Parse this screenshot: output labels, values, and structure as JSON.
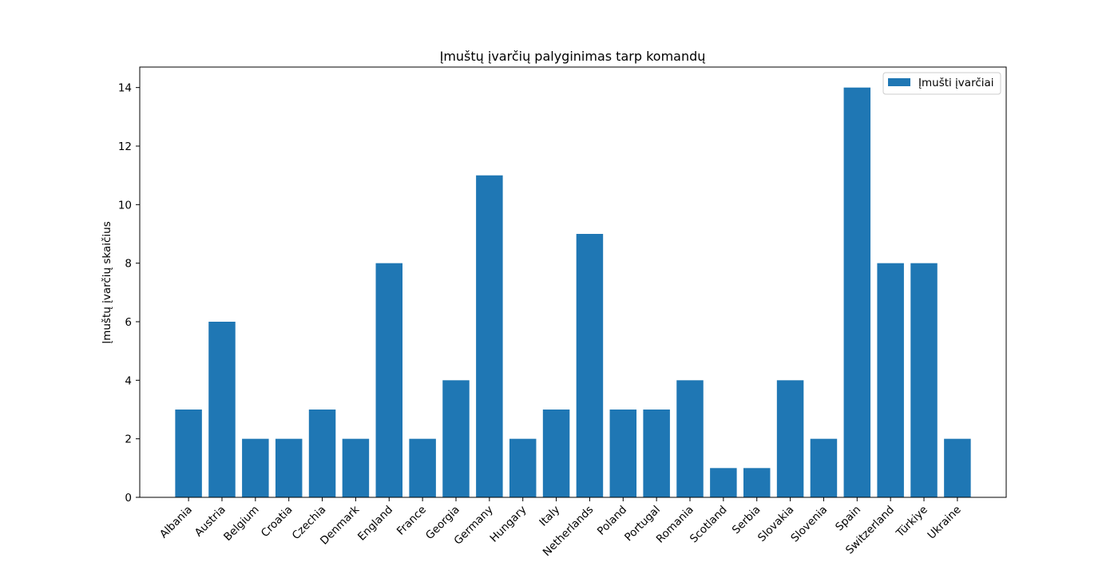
{
  "chart_data": {
    "type": "bar",
    "title": "Įmuštų įvarčių palyginimas tarp komandų",
    "xlabel": "",
    "ylabel": "Įmuštų įvarčių skaičius",
    "ylim": [
      0,
      14.7
    ],
    "yticks": [
      "0",
      "2",
      "4",
      "6",
      "8",
      "10",
      "12",
      "14"
    ],
    "grid": false,
    "legend_position": "top-right",
    "bar_color": "#1f77b4",
    "categories": [
      "Albania",
      "Austria",
      "Belgium",
      "Croatia",
      "Czechia",
      "Denmark",
      "England",
      "France",
      "Georgia",
      "Germany",
      "Hungary",
      "Italy",
      "Netherlands",
      "Poland",
      "Portugal",
      "Romania",
      "Scotland",
      "Serbia",
      "Slovakia",
      "Slovenia",
      "Spain",
      "Switzerland",
      "Türkiye",
      "Ukraine"
    ],
    "series": [
      {
        "name": "Įmušti įvarčiai",
        "values": [
          3,
          6,
          2,
          2,
          3,
          2,
          8,
          2,
          4,
          11,
          2,
          3,
          9,
          3,
          3,
          4,
          1,
          1,
          4,
          2,
          14,
          8,
          8,
          2
        ]
      }
    ]
  }
}
